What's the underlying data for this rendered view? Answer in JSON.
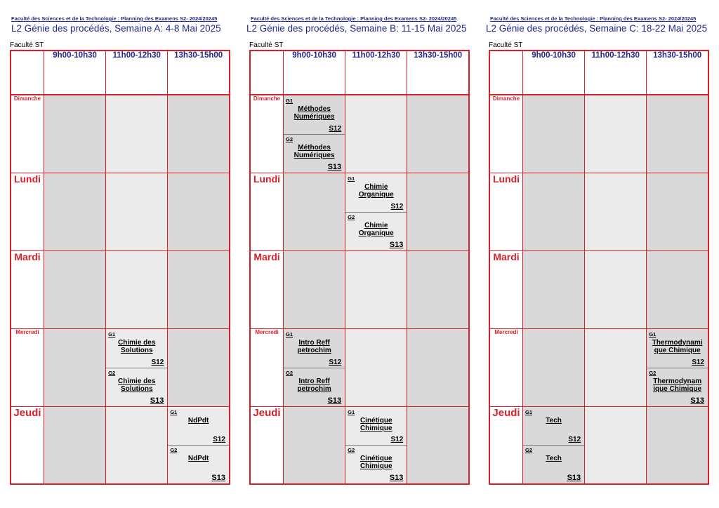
{
  "panels": [
    {
      "faculty_header": "Faculté des Sciences et de la Technologie : Planning des Examens S2- 2024/20245",
      "title": "L2 Génie des procédés, Semaine A: 4-8 Mai 2025",
      "faculty_label": "Faculté ST",
      "slots": [
        "9h00-10h30",
        "11h00-12h30",
        "13h30-15h00"
      ],
      "days": [
        "Dimanche",
        "Lundi",
        "Mardi",
        "Mercredi",
        "Jeudi"
      ],
      "exams": {
        "wed_s2": {
          "g1_label": "G1",
          "g1_subject": "Chimie des Solutions",
          "g1_room": "S12",
          "g2_label": "G2",
          "g2_subject": "Chimie des Solutions",
          "g2_room": "S13"
        },
        "thu_s3": {
          "g1_label": "G1",
          "g1_subject": "NdPdt",
          "g1_room": "S12",
          "g2_label": "G2",
          "g2_subject": "NdPdt",
          "g2_room": "S13"
        }
      }
    },
    {
      "faculty_header": "Faculté des Sciences et de la Technologie : Planning des Examens S2- 2024/20245",
      "title": "L2 Génie des procédés, Semaine B: 11-15 Mai 2025",
      "faculty_label": "Faculté ST",
      "slots": [
        "9h00-10h30",
        "11h00-12h30",
        "13h30-15h00"
      ],
      "days": [
        "Dimanche",
        "Lundi",
        "Mardi",
        "Mercredi",
        "Jeudi"
      ],
      "exams": {
        "sun_s1": {
          "g1_label": "G1",
          "g1_subject": "Méthodes Numériques",
          "g1_room": "S12",
          "g2_label": "G2",
          "g2_subject": "Méthodes Numériques",
          "g2_room": "S13"
        },
        "mon_s2": {
          "g1_label": "G1",
          "g1_subject": "Chimie Organique",
          "g1_room": "S12",
          "g2_label": "G2",
          "g2_subject": "Chimie Organique",
          "g2_room": "S13"
        },
        "wed_s1": {
          "g1_label": "G1",
          "g1_subject": "Intro Reff petrochim",
          "g1_room": "S12",
          "g2_label": "G2",
          "g2_subject": "Intro Reff petrochim",
          "g2_room": "S13"
        },
        "thu_s2": {
          "g1_label": "G1",
          "g1_subject": "Cinétique Chimique",
          "g1_room": "S12",
          "g2_label": "G2",
          "g2_subject": "Cinétique Chimique",
          "g2_room": "S13"
        }
      }
    },
    {
      "faculty_header": "Faculté des Sciences et de la Technologie : Planning des Examens S2- 2024/20245",
      "title": "L2 Génie des procédés, Semaine C: 18-22 Mai 2025",
      "faculty_label": "Faculté ST",
      "slots": [
        "9h00-10h30",
        "11h00-12h30",
        "13h30-15h00"
      ],
      "days": [
        "Dimanche",
        "Lundi",
        "Mardi",
        "Mercredi",
        "Jeudi"
      ],
      "exams": {
        "wed_s3": {
          "g1_label": "G1",
          "g1_subject": "Thermodynami que Chimique",
          "g1_room": "S12",
          "g2_label": "G2",
          "g2_subject": "Thermodynam ique Chimique",
          "g2_room": "S13"
        },
        "thu_s1": {
          "g1_label": "G1",
          "g1_subject": "Tech",
          "g1_room": "S12",
          "g2_label": "G2",
          "g2_subject": "Tech",
          "g2_room": "S13"
        }
      }
    }
  ]
}
